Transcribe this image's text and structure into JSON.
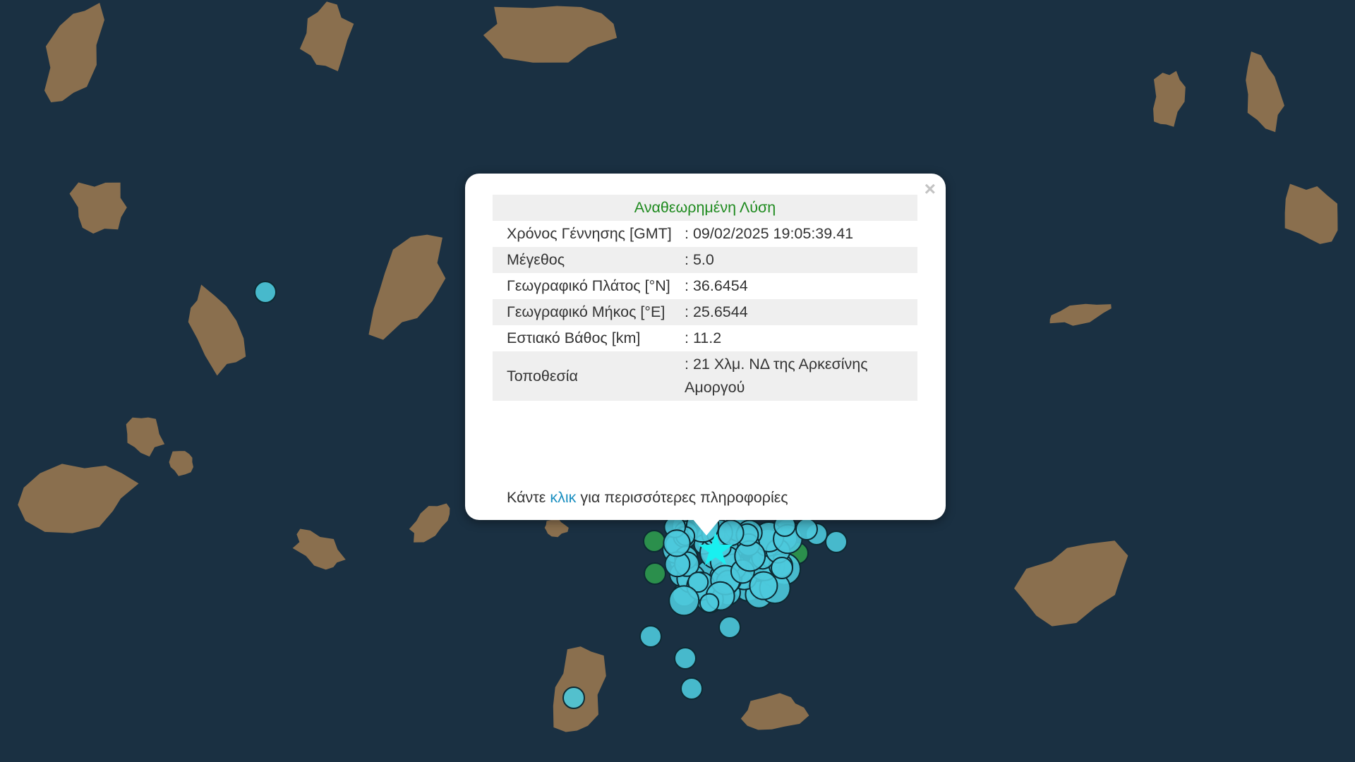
{
  "map": {
    "colors": {
      "sea": "#1a3042",
      "land": "#8a6f4e",
      "marker_cyan": "#4cc9dc",
      "marker_green": "#2e9a4e",
      "star": "#19f0f0"
    },
    "legend_icons": [
      "circle-marker-icon",
      "star-marker-icon"
    ]
  },
  "popup": {
    "close_label": "×",
    "title": "Αναθεωρημένη Λύση",
    "rows": [
      {
        "label": "Χρόνος Γέννησης [GMT]",
        "value": ": 09/02/2025 19:05:39.41"
      },
      {
        "label": "Μέγεθος",
        "value": ": 5.0"
      },
      {
        "label": "Γεωγραφικό Πλάτος [°N]",
        "value": ": 36.6454"
      },
      {
        "label": "Γεωγραφικό Μήκος [°E]",
        "value": ": 25.6544"
      },
      {
        "label": "Εστιακό Βάθος [km]",
        "value": ": 11.2"
      },
      {
        "label": "Τοποθεσία",
        "value": ": 21 Χλμ. ΝΔ της Αρκεσίνης Αμοργού"
      }
    ],
    "footer_pre": "Κάντε ",
    "footer_link": "κλικ",
    "footer_post": " για περισσότερες πληροφορίες"
  }
}
